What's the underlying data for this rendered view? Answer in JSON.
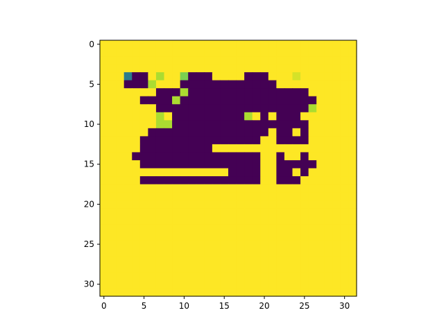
{
  "chart_data": {
    "type": "heatmap",
    "title": "",
    "xlabel": "",
    "ylabel": "",
    "colormap": "viridis",
    "value_range": [
      0,
      1
    ],
    "palette": {
      "dark": "#440154",
      "mid_dark": "#3b528b",
      "teal": "#21918c",
      "green": "#5ec962",
      "light_green": "#b5de2b",
      "yellow": "#fde725"
    },
    "grid": false,
    "rows": 32,
    "cols": 32,
    "x_ticks": [
      0,
      5,
      10,
      15,
      20,
      25,
      30
    ],
    "y_ticks": [
      0,
      5,
      10,
      15,
      20,
      25,
      30
    ],
    "x_tick_labels": [
      "0",
      "5",
      "10",
      "15",
      "20",
      "25",
      "30"
    ],
    "y_tick_labels": [
      "0",
      "5",
      "10",
      "15",
      "20",
      "25",
      "30"
    ],
    "values": [
      "99999999999999999999999999999999",
      "99999999999999999999999999999999",
      "99999999999999999999999999999999",
      "99999999999999999999999999999999",
      "99930097996000999900099989999999",
      "99900079990000000000009999999999",
      "99999990007000000000000000999999",
      "99999000070000000000000000099999",
      "99999990000000000000000000799999",
      "99999997900000000079090009999999",
      "99999997700000000000000000999999",
      "99999900000000000000090090999999",
      "99999000000000000000990000999999",
      "99999000000000999999999999999999",
      "99990000000000000000990990999999",
      "99999000000000000000990000099999",
      "99999999999999990000990090999999",
      "99999000000000000000990009999999",
      "99999999999999999999999999999999",
      "99999999999999999999999999999999",
      "99999999999999999999999999999999",
      "99999999999999999999999999999999",
      "99999999999999999999999999999999",
      "99999999999999999999999999999999",
      "99999999999999999999999999999999",
      "99999999999999999999999999999999",
      "99999999999999999999999999999999",
      "99999999999999999999999999999999",
      "99999999999999999999999999999999",
      "99999999999999999999999999999999",
      "99999999999999999999999999999999",
      "99999999999999999999999999999999"
    ]
  }
}
